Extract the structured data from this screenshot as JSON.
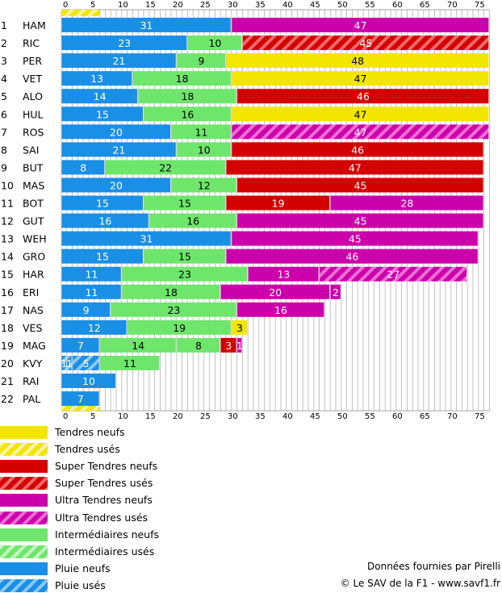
{
  "colors": {
    "rain": "#1a8fe6",
    "inter": "#6ee66b",
    "us": "#cc00aa",
    "ss": "#d40000",
    "soft": "#f2e600"
  },
  "chart_data": {
    "type": "bar",
    "orientation": "horizontal",
    "stacked": true,
    "xlim": [
      0,
      78
    ],
    "xticks": [
      "0",
      "5",
      "10",
      "15",
      "20",
      "25",
      "30",
      "35",
      "40",
      "45",
      "50",
      "55",
      "60",
      "65",
      "70",
      "75"
    ],
    "drivers": [
      {
        "pos": "1",
        "name": "HAM",
        "stints": [
          {
            "c": "rain",
            "n": 31,
            "label": "31"
          },
          {
            "c": "us",
            "n": 47,
            "label": "47"
          }
        ]
      },
      {
        "pos": "2",
        "name": "RIC",
        "stints": [
          {
            "c": "rain",
            "n": 23,
            "label": "23"
          },
          {
            "c": "inter",
            "n": 10,
            "label": "10"
          },
          {
            "c": "ss_used",
            "n": 45,
            "label": "45"
          }
        ]
      },
      {
        "pos": "3",
        "name": "PER",
        "stints": [
          {
            "c": "rain",
            "n": 21,
            "label": "21"
          },
          {
            "c": "inter",
            "n": 9,
            "label": "9"
          },
          {
            "c": "soft",
            "n": 48,
            "label": "48"
          }
        ]
      },
      {
        "pos": "4",
        "name": "VET",
        "stints": [
          {
            "c": "rain",
            "n": 13,
            "label": "13"
          },
          {
            "c": "inter",
            "n": 18,
            "label": "18"
          },
          {
            "c": "soft",
            "n": 47,
            "label": "47"
          }
        ]
      },
      {
        "pos": "5",
        "name": "ALO",
        "stints": [
          {
            "c": "rain",
            "n": 14,
            "label": "14"
          },
          {
            "c": "inter",
            "n": 18,
            "label": "18"
          },
          {
            "c": "ss",
            "n": 46,
            "label": "46"
          }
        ]
      },
      {
        "pos": "6",
        "name": "HUL",
        "stints": [
          {
            "c": "rain",
            "n": 15,
            "label": "15"
          },
          {
            "c": "inter",
            "n": 16,
            "label": "16"
          },
          {
            "c": "soft",
            "n": 47,
            "label": "47"
          }
        ]
      },
      {
        "pos": "7",
        "name": "ROS",
        "stints": [
          {
            "c": "rain",
            "n": 20,
            "label": "20"
          },
          {
            "c": "inter",
            "n": 11,
            "label": "11"
          },
          {
            "c": "us_used",
            "n": 47,
            "label": "47"
          }
        ]
      },
      {
        "pos": "8",
        "name": "SAI",
        "stints": [
          {
            "c": "rain",
            "n": 21,
            "label": "21"
          },
          {
            "c": "inter",
            "n": 10,
            "label": "10"
          },
          {
            "c": "ss",
            "n": 46,
            "label": "46"
          }
        ]
      },
      {
        "pos": "9",
        "name": "BUT",
        "stints": [
          {
            "c": "rain",
            "n": 8,
            "label": "8"
          },
          {
            "c": "inter",
            "n": 22,
            "label": "22"
          },
          {
            "c": "ss",
            "n": 47,
            "label": "47"
          }
        ]
      },
      {
        "pos": "10",
        "name": "MAS",
        "stints": [
          {
            "c": "rain",
            "n": 20,
            "label": "20"
          },
          {
            "c": "inter",
            "n": 12,
            "label": "12"
          },
          {
            "c": "ss",
            "n": 45,
            "label": "45"
          }
        ]
      },
      {
        "pos": "11",
        "name": "BOT",
        "stints": [
          {
            "c": "rain",
            "n": 15,
            "label": "15"
          },
          {
            "c": "inter",
            "n": 15,
            "label": "15"
          },
          {
            "c": "ss",
            "n": 19,
            "label": "19"
          },
          {
            "c": "us",
            "n": 28,
            "label": "28"
          }
        ]
      },
      {
        "pos": "12",
        "name": "GUT",
        "stints": [
          {
            "c": "rain",
            "n": 16,
            "label": "16"
          },
          {
            "c": "inter",
            "n": 16,
            "label": "16"
          },
          {
            "c": "us",
            "n": 45,
            "label": "45"
          }
        ]
      },
      {
        "pos": "13",
        "name": "WEH",
        "stints": [
          {
            "c": "rain",
            "n": 31,
            "label": "31"
          },
          {
            "c": "us",
            "n": 45,
            "label": "45"
          }
        ]
      },
      {
        "pos": "14",
        "name": "GRO",
        "stints": [
          {
            "c": "rain",
            "n": 15,
            "label": "15"
          },
          {
            "c": "inter",
            "n": 15,
            "label": "15"
          },
          {
            "c": "us",
            "n": 46,
            "label": "46"
          }
        ]
      },
      {
        "pos": "15",
        "name": "HAR",
        "stints": [
          {
            "c": "rain",
            "n": 11,
            "label": "11"
          },
          {
            "c": "inter",
            "n": 23,
            "label": "23"
          },
          {
            "c": "us",
            "n": 13,
            "label": "13"
          },
          {
            "c": "us_used",
            "n": 27,
            "label": "27"
          }
        ]
      },
      {
        "pos": "16",
        "name": "ERI",
        "stints": [
          {
            "c": "rain",
            "n": 11,
            "label": "11"
          },
          {
            "c": "inter",
            "n": 18,
            "label": "18"
          },
          {
            "c": "us",
            "n": 20,
            "label": "20"
          },
          {
            "c": "us",
            "n": 2,
            "label": "2"
          }
        ]
      },
      {
        "pos": "17",
        "name": "NAS",
        "stints": [
          {
            "c": "rain",
            "n": 9,
            "label": "9"
          },
          {
            "c": "inter",
            "n": 23,
            "label": "23"
          },
          {
            "c": "us",
            "n": 16,
            "label": "16"
          }
        ]
      },
      {
        "pos": "18",
        "name": "VES",
        "stints": [
          {
            "c": "rain",
            "n": 12,
            "label": "12"
          },
          {
            "c": "inter",
            "n": 19,
            "label": "19"
          },
          {
            "c": "soft",
            "n": 3,
            "label": "3"
          }
        ]
      },
      {
        "pos": "19",
        "name": "MAG",
        "stints": [
          {
            "c": "rain",
            "n": 7,
            "label": "7"
          },
          {
            "c": "inter",
            "n": 14,
            "label": "14"
          },
          {
            "c": "inter",
            "n": 8,
            "label": "8"
          },
          {
            "c": "ss",
            "n": 3,
            "label": "3"
          },
          {
            "c": "us",
            "n": 1,
            "label": "1"
          }
        ]
      },
      {
        "pos": "20",
        "name": "KVY",
        "stints": [
          {
            "c": "rain_used",
            "n": 1,
            "label": "1"
          },
          {
            "c": "rain_used",
            "n": 1,
            "label": "1"
          },
          {
            "c": "rain_used",
            "n": 5,
            "label": "5"
          },
          {
            "c": "inter",
            "n": 11,
            "label": "11"
          }
        ]
      },
      {
        "pos": "21",
        "name": "RAI",
        "stints": [
          {
            "c": "rain",
            "n": 10,
            "label": "10"
          }
        ]
      },
      {
        "pos": "22",
        "name": "PAL",
        "stints": [
          {
            "c": "rain",
            "n": 7,
            "label": "7"
          }
        ]
      }
    ],
    "safety_car": {
      "from": 0,
      "to": 7
    }
  },
  "legend": [
    {
      "key": "soft",
      "label": "Tendres neufs"
    },
    {
      "key": "soft_used",
      "label": "Tendres usés"
    },
    {
      "key": "ss",
      "label": "Super Tendres neufs"
    },
    {
      "key": "ss_used",
      "label": "Super Tendres usés"
    },
    {
      "key": "us",
      "label": "Ultra Tendres neufs"
    },
    {
      "key": "us_used",
      "label": "Ultra Tendres usés"
    },
    {
      "key": "inter",
      "label": "Intermédiaires neufs"
    },
    {
      "key": "inter_used",
      "label": "Intermédiaires usés"
    },
    {
      "key": "rain",
      "label": "Pluie neufs"
    },
    {
      "key": "rain_used",
      "label": "Pluie usés"
    }
  ],
  "credits": {
    "source": "Données fournies par Pirelli",
    "copyright": "© Le SAV de la F1 - www.savf1.fr"
  }
}
